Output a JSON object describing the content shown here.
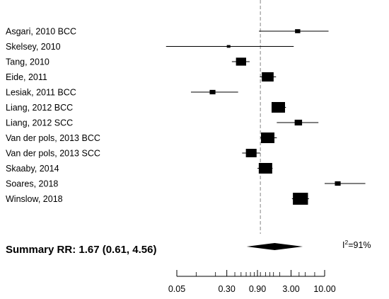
{
  "chart_data": {
    "type": "forest",
    "x_scale": "log",
    "xlim": [
      0.05,
      10.0
    ],
    "reference_line": 1.0,
    "x_ticks": [
      {
        "value": 0.05,
        "label": "0.05"
      },
      {
        "value": 0.3,
        "label": "0.30"
      },
      {
        "value": 0.9,
        "label": "0.90"
      },
      {
        "value": 3.0,
        "label": "3.00"
      },
      {
        "value": 10.0,
        "label": "10.00"
      }
    ],
    "minor_ticks": [
      0.1,
      0.2,
      0.4,
      0.5,
      0.6,
      0.7,
      0.8,
      1.0,
      1.2,
      1.4,
      1.6,
      2.0,
      4.0,
      5.0,
      7.0
    ],
    "studies": [
      {
        "label": "Asgari, 2010 BCC",
        "rr": 3.8,
        "lower": 0.95,
        "upper": 11.5,
        "weight": 0.25
      },
      {
        "label": "Skelsey, 2010",
        "rr": 0.32,
        "lower": 0.034,
        "upper": 3.3,
        "weight": 0.1
      },
      {
        "label": "Tang, 2010",
        "rr": 0.5,
        "lower": 0.36,
        "upper": 0.68,
        "weight": 0.7
      },
      {
        "label": "Eide, 2011",
        "rr": 1.3,
        "lower": 0.98,
        "upper": 1.75,
        "weight": 0.85
      },
      {
        "label": "Lesiak, 2011 BCC",
        "rr": 0.18,
        "lower": 0.083,
        "upper": 0.45,
        "weight": 0.3
      },
      {
        "label": "Liang, 2012 BCC",
        "rr": 1.9,
        "lower": 1.5,
        "upper": 2.5,
        "weight": 1.0
      },
      {
        "label": "Liang, 2012 SCC",
        "rr": 3.9,
        "lower": 1.8,
        "upper": 8.0,
        "weight": 0.45
      },
      {
        "label": "Van der pols, 2013 BCC",
        "rr": 1.3,
        "lower": 1.0,
        "upper": 1.8,
        "weight": 1.0
      },
      {
        "label": "Van der pols, 2013 SCC",
        "rr": 0.72,
        "lower": 0.52,
        "upper": 0.99,
        "weight": 0.75
      },
      {
        "label": "Skaaby, 2014",
        "rr": 1.2,
        "lower": 0.9,
        "upper": 1.55,
        "weight": 1.0
      },
      {
        "label": "Soares, 2018",
        "rr": 16.0,
        "lower": 10.0,
        "upper": 43.0,
        "weight": 0.3
      },
      {
        "label": "Winslow, 2018",
        "rr": 4.2,
        "lower": 3.1,
        "upper": 5.7,
        "weight": 1.15
      }
    ],
    "summary": {
      "label": "Summary RR:  1.67 (0.61, 4.56)",
      "rr": 1.67,
      "lower": 0.61,
      "upper": 4.56
    },
    "heterogeneity": {
      "prefix": "I",
      "superscript": "2",
      "text": "=91%"
    }
  }
}
